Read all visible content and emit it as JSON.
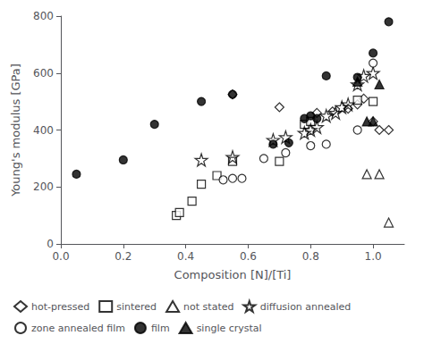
{
  "chart_data": {
    "type": "scatter",
    "xlabel": "Composition [N]/[Ti]",
    "ylabel": "Young's modulus [GPa]",
    "xlim": [
      0.0,
      1.1
    ],
    "ylim": [
      0,
      800
    ],
    "xticks": [
      {
        "value": 0.0,
        "label": "0.0"
      },
      0.2,
      0.4,
      0.6,
      0.8,
      {
        "value": 1.0,
        "label": "1.0"
      }
    ],
    "yticks": [
      0,
      200,
      400,
      600,
      800
    ],
    "grid": false,
    "legend": "lower left",
    "series": [
      {
        "name": "hot-pressed",
        "marker": "diamond-open",
        "color": "black",
        "x": [
          0.55,
          0.7,
          0.82,
          0.87,
          0.92,
          0.95,
          0.97,
          1.0,
          1.02,
          1.05
        ],
        "values": [
          525,
          480,
          460,
          465,
          475,
          490,
          510,
          430,
          400,
          400
        ]
      },
      {
        "name": "sintered",
        "marker": "square-open",
        "color": "black",
        "x": [
          0.37,
          0.38,
          0.42,
          0.45,
          0.5,
          0.55,
          0.7,
          0.78,
          0.8,
          0.95,
          1.0
        ],
        "values": [
          100,
          110,
          150,
          210,
          240,
          290,
          290,
          420,
          430,
          505,
          500
        ]
      },
      {
        "name": "not stated",
        "marker": "triangle-open",
        "color": "black",
        "x": [
          0.98,
          1.02,
          1.05
        ],
        "values": [
          245,
          245,
          75
        ]
      },
      {
        "name": "diffusion annealed",
        "marker": "star-open",
        "color": "black",
        "x": [
          0.45,
          0.55,
          0.68,
          0.72,
          0.78,
          0.8,
          0.82,
          0.85,
          0.88,
          0.9,
          0.92,
          0.95,
          0.97,
          1.0
        ],
        "values": [
          295,
          305,
          365,
          375,
          390,
          400,
          410,
          450,
          460,
          480,
          490,
          560,
          590,
          600
        ]
      },
      {
        "name": "zone annealed film",
        "marker": "circle-open",
        "color": "black",
        "x": [
          0.52,
          0.55,
          0.58,
          0.65,
          0.72,
          0.8,
          0.85,
          0.95,
          1.0
        ],
        "values": [
          225,
          230,
          230,
          300,
          320,
          345,
          350,
          400,
          635
        ]
      },
      {
        "name": "film",
        "marker": "circle-filled",
        "color": "black",
        "x": [
          0.05,
          0.2,
          0.3,
          0.45,
          0.55,
          0.68,
          0.73,
          0.78,
          0.8,
          0.82,
          0.85,
          0.95,
          1.0,
          1.05
        ],
        "values": [
          245,
          295,
          420,
          500,
          525,
          350,
          355,
          440,
          450,
          440,
          590,
          585,
          670,
          780
        ]
      },
      {
        "name": "single crystal",
        "marker": "triangle-filled",
        "color": "black",
        "x": [
          0.95,
          0.98,
          1.0,
          1.02
        ],
        "values": [
          570,
          430,
          430,
          560
        ]
      }
    ]
  }
}
